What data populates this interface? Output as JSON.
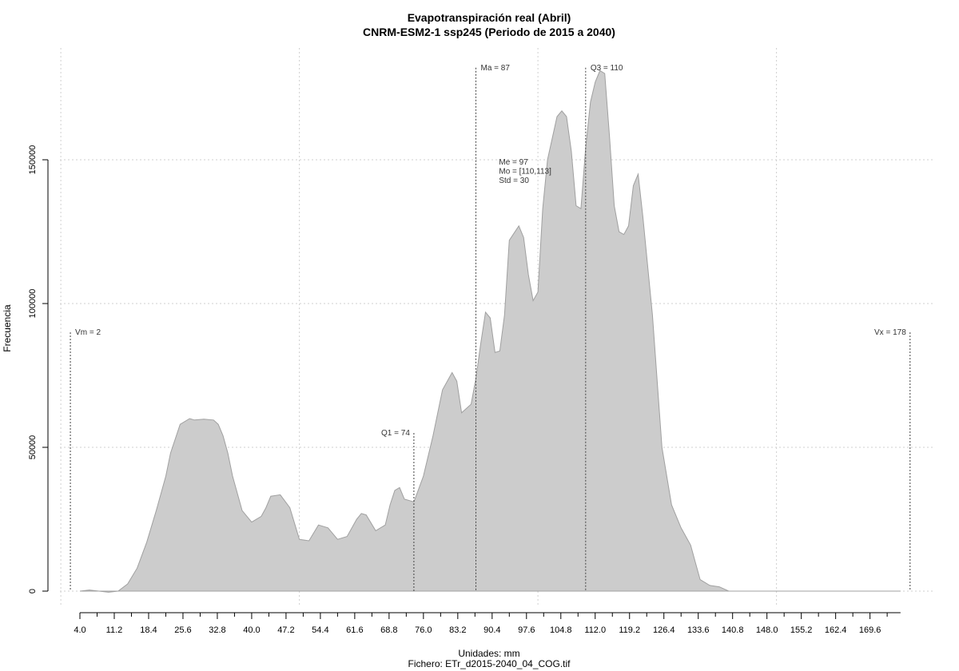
{
  "chart_data": {
    "type": "area",
    "title": "Evapotranspiración real (Abril)",
    "subtitle": "CNRM-ESM2-1 ssp245 (Periodo de 2015 a 2040)",
    "xlabel": "Unidades: mm",
    "ylabel": "Frecuencia",
    "footer": "Fichero: ETr_d2015-2040_04_COG.tif",
    "xlim": [
      0,
      180
    ],
    "ylim": [
      0,
      180000
    ],
    "x_ticks": [
      "4.0",
      "11.2",
      "18.4",
      "25.6",
      "32.8",
      "40.0",
      "47.2",
      "54.4",
      "61.6",
      "68.8",
      "76.0",
      "83.2",
      "90.4",
      "97.6",
      "104.8",
      "112.0",
      "119.2",
      "126.4",
      "133.6",
      "140.8",
      "148.0",
      "155.2",
      "162.4",
      "169.6"
    ],
    "y_ticks": [
      "0",
      "50000",
      "100000",
      "150000"
    ],
    "grid": true,
    "fill_color": "#cccccc",
    "stroke_color": "#a0a0a0",
    "series": [
      {
        "x": [
          4,
          6,
          8,
          10,
          12,
          14,
          16,
          18,
          20,
          22,
          23,
          25,
          27,
          28,
          30,
          32,
          33,
          34,
          35,
          36,
          38,
          40,
          42,
          43,
          44,
          46,
          48,
          50,
          52,
          54,
          56,
          58,
          60,
          62,
          63,
          64,
          66,
          68,
          69,
          70,
          71,
          72,
          74,
          76,
          78,
          80,
          82,
          83,
          84,
          86,
          87,
          88,
          89,
          90,
          91,
          92,
          93,
          94,
          96,
          97,
          98,
          99,
          100,
          101,
          102,
          104,
          105,
          106,
          107,
          108,
          109,
          110,
          111,
          112,
          113,
          114,
          115,
          116,
          117,
          118,
          119,
          120,
          121,
          122,
          124,
          126,
          128,
          130,
          132,
          133,
          134,
          136,
          138,
          140,
          142,
          144,
          146,
          150,
          160,
          170,
          176
        ],
        "y": [
          0,
          400,
          0,
          -400,
          0,
          2500,
          8000,
          17000,
          28000,
          40000,
          48000,
          58000,
          60000,
          59500,
          59800,
          59500,
          58000,
          54000,
          48000,
          40000,
          28000,
          24000,
          26000,
          29000,
          33000,
          33500,
          29000,
          18000,
          17500,
          23000,
          22000,
          18000,
          19000,
          25000,
          27000,
          26500,
          21000,
          23000,
          30000,
          35000,
          36000,
          32000,
          31000,
          40000,
          54000,
          70000,
          76000,
          73000,
          62000,
          65000,
          74000,
          86000,
          97000,
          95000,
          83000,
          83500,
          96000,
          122000,
          127000,
          123000,
          110000,
          101000,
          104000,
          133000,
          150000,
          165000,
          167000,
          165000,
          153000,
          134000,
          133000,
          154000,
          170000,
          177000,
          181000,
          180000,
          158000,
          134000,
          125000,
          124000,
          127000,
          141000,
          145000,
          130000,
          96000,
          50000,
          30000,
          22000,
          16000,
          10000,
          4000,
          2000,
          1500,
          0,
          0,
          0,
          0,
          0,
          0,
          0,
          0
        ]
      }
    ],
    "annotations": [
      {
        "label": "Vm = 2",
        "x": 2
      },
      {
        "label": "Q1 = 74",
        "x": 74
      },
      {
        "label": "Ma = 87",
        "x": 87
      },
      {
        "label": "Q3 = 110",
        "x": 110
      },
      {
        "label": "Vx = 178",
        "x": 178
      }
    ],
    "stats_box": [
      "Me = 97",
      "Mo = [110,113]",
      "Std = 30"
    ],
    "stats_box_anchor_x": 92
  }
}
